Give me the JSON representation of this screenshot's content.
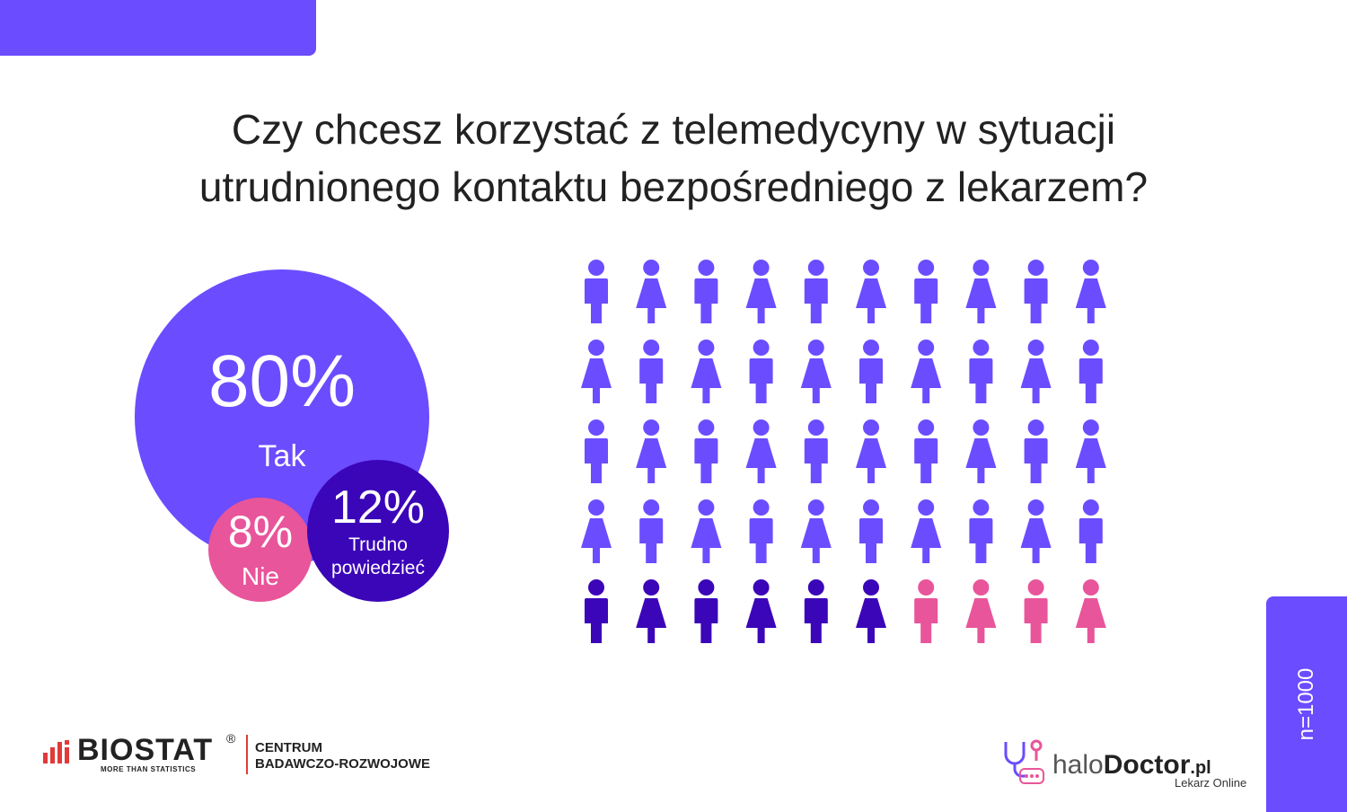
{
  "title": {
    "line1": "Czy chcesz korzystać z telemedycyny w sytuacji",
    "line2": "utrudnionego kontaktu bezpośredniego z lekarzem?"
  },
  "chart_data": {
    "type": "bubble-pictogram",
    "categories": [
      {
        "label": "Tak",
        "value": 80,
        "display": "80%",
        "color": "#6b4cff"
      },
      {
        "label": "Trudno powiedzieć",
        "value": 12,
        "display": "12%",
        "color": "#3b05b8"
      },
      {
        "label": "Nie",
        "value": 8,
        "display": "8%",
        "color": "#e8559a"
      }
    ],
    "pictogram": {
      "rows": 5,
      "cols": 10,
      "total_icons": 50,
      "icons_per_category": {
        "Tak": 40,
        "Trudno powiedzieć": 6,
        "Nie": 4
      },
      "icon_order": "alternating male/female"
    }
  },
  "sample": {
    "label": "n=1000"
  },
  "logos": {
    "biostat": {
      "name": "BIOSTAT",
      "registered": "®",
      "tagline": "MORE THAN STATISTICS",
      "center_line1": "CENTRUM",
      "center_line2": "BADAWCZO-ROZWOJOWE"
    },
    "halodoctor": {
      "name_prefix": "halo",
      "name_main": "Doctor",
      "name_suffix": ".pl",
      "tagline": "Lekarz Online"
    }
  },
  "colors": {
    "primary": "#6b4cff",
    "dark": "#3b05b8",
    "pink": "#e8559a"
  }
}
